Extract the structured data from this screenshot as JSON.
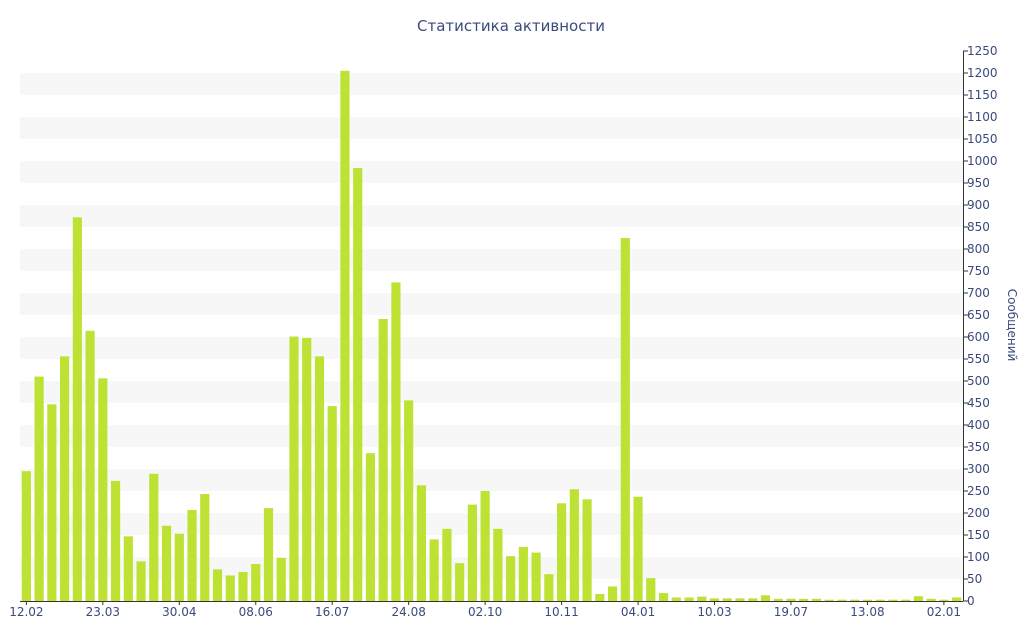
{
  "chart_data": {
    "type": "bar",
    "title": "Статистика активности",
    "xlabel": "",
    "ylabel": "Сообщений",
    "ylim": [
      0,
      1250
    ],
    "y_ticks": [
      0,
      50,
      100,
      150,
      200,
      250,
      300,
      350,
      400,
      450,
      500,
      550,
      600,
      650,
      700,
      750,
      800,
      850,
      900,
      950,
      1000,
      1050,
      1100,
      1150,
      1200,
      1250
    ],
    "grid": "horizontal-bands",
    "bar_color": "#bde234",
    "band_color": "#f7f7f7",
    "text_color": "#3a4a7c",
    "axis_color": "#333333",
    "x_tick_labels": [
      {
        "label": "12.02",
        "index": 0
      },
      {
        "label": "23.03",
        "index": 6
      },
      {
        "label": "30.04",
        "index": 12
      },
      {
        "label": "08.06",
        "index": 18
      },
      {
        "label": "16.07",
        "index": 24
      },
      {
        "label": "24.08",
        "index": 30
      },
      {
        "label": "02.10",
        "index": 36
      },
      {
        "label": "10.11",
        "index": 42
      },
      {
        "label": "04.01",
        "index": 48
      },
      {
        "label": "10.03",
        "index": 54
      },
      {
        "label": "19.07",
        "index": 60
      },
      {
        "label": "13.08",
        "index": 66
      },
      {
        "label": "02.01",
        "index": 72
      }
    ],
    "values": [
      295,
      510,
      447,
      556,
      872,
      614,
      506,
      273,
      147,
      90,
      289,
      171,
      153,
      207,
      243,
      72,
      58,
      66,
      84,
      211,
      98,
      601,
      598,
      556,
      443,
      1205,
      984,
      336,
      641,
      724,
      456,
      263,
      140,
      164,
      86,
      219,
      250,
      164,
      102,
      123,
      110,
      61,
      222,
      254,
      231,
      16,
      33,
      825,
      237,
      52,
      18,
      8,
      8,
      10,
      6,
      6,
      6,
      6,
      13,
      5,
      5,
      5,
      5,
      3,
      3,
      3,
      3,
      3,
      3,
      3,
      11,
      5,
      3,
      8
    ]
  }
}
